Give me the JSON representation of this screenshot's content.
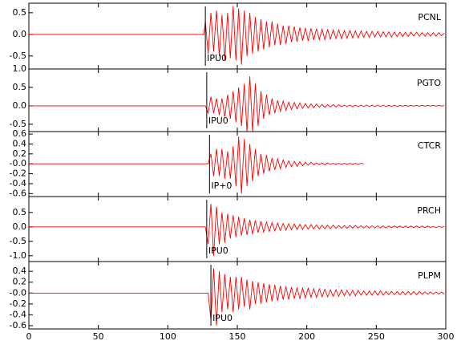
{
  "chart_data": [
    {
      "type": "line",
      "title": "PCNL",
      "x": [
        0,
        126,
        127,
        129,
        131,
        133,
        135,
        137,
        139,
        141,
        143,
        145,
        147,
        149,
        151,
        153,
        155,
        157,
        159,
        161,
        163,
        165,
        167,
        169,
        171,
        173,
        175,
        177,
        179,
        181,
        183,
        185,
        187,
        189,
        191,
        193,
        195,
        197,
        199,
        201,
        203,
        205,
        207,
        209,
        211,
        213,
        215,
        217,
        219,
        221,
        223,
        225,
        227,
        229,
        231,
        233,
        235,
        237,
        239,
        241,
        243,
        245,
        247,
        249,
        251,
        253,
        255,
        257,
        259,
        261,
        263,
        265,
        267,
        269,
        271,
        273,
        275,
        277,
        279,
        281,
        283,
        285,
        287,
        289,
        291,
        293,
        295,
        297,
        299
      ],
      "series": [
        {
          "color": "#ff0000",
          "values": [
            0,
            0,
            0.3,
            -0.45,
            0.5,
            -0.4,
            0.55,
            -0.5,
            0.45,
            -0.6,
            0.5,
            -0.55,
            0.65,
            -0.6,
            0.6,
            -0.7,
            0.55,
            -0.5,
            0.5,
            -0.45,
            0.4,
            -0.4,
            0.35,
            -0.35,
            0.3,
            -0.3,
            0.3,
            -0.25,
            0.25,
            -0.25,
            0.2,
            -0.22,
            0.2,
            -0.18,
            0.18,
            -0.17,
            0.16,
            -0.15,
            0.15,
            -0.15,
            0.14,
            -0.13,
            0.13,
            -0.12,
            0.12,
            -0.12,
            0.11,
            -0.11,
            0.1,
            -0.1,
            0.1,
            -0.1,
            0.09,
            -0.09,
            0.09,
            -0.08,
            0.08,
            -0.08,
            0.08,
            -0.07,
            0.07,
            -0.07,
            0.07,
            -0.06,
            0.07,
            -0.06,
            0.06,
            -0.06,
            0.06,
            -0.06,
            0.05,
            -0.05,
            0.05,
            -0.05,
            0.05,
            -0.05,
            0.05,
            -0.04,
            0.05,
            -0.04,
            0.04,
            -0.04,
            0.04,
            -0.04,
            0.04,
            -0.04,
            0.04,
            -0.03,
            0.03
          ]
        }
      ],
      "xlim": [
        0,
        300
      ],
      "xticks": [
        0,
        50,
        100,
        150,
        200,
        250,
        300
      ],
      "ylim": [
        -0.8,
        0.72
      ],
      "yticks": [
        -0.5,
        {
          "value": 0,
          "label": "0.0"
        },
        0.5
      ],
      "annotation": {
        "label": "IPU0",
        "x": 127
      }
    },
    {
      "type": "line",
      "title": "PGTO",
      "x": [
        0,
        126,
        127,
        129,
        131,
        133,
        135,
        137,
        139,
        141,
        143,
        145,
        147,
        149,
        151,
        153,
        155,
        157,
        159,
        161,
        163,
        165,
        167,
        169,
        171,
        173,
        175,
        177,
        179,
        181,
        183,
        185,
        187,
        189,
        191,
        193,
        195,
        197,
        199,
        201,
        203,
        205,
        207,
        209,
        211,
        213,
        215,
        217,
        219,
        221,
        223,
        225,
        227,
        229,
        231,
        233,
        235,
        237,
        239,
        241,
        243,
        245,
        247,
        249,
        251,
        253,
        255,
        257,
        259,
        261,
        263,
        265,
        267,
        269,
        271,
        273,
        275,
        277,
        279,
        281,
        283,
        285,
        287,
        289,
        291,
        293,
        295,
        297,
        299
      ],
      "series": [
        {
          "color": "#ff0000",
          "values": [
            0,
            0,
            0,
            -0.2,
            0.25,
            -0.2,
            0.2,
            -0.25,
            0.2,
            -0.3,
            0.3,
            -0.35,
            0.4,
            -0.45,
            0.5,
            -0.55,
            0.6,
            -0.7,
            0.8,
            -0.7,
            0.6,
            -0.55,
            0.4,
            -0.35,
            0.3,
            -0.25,
            0.2,
            -0.2,
            0.15,
            -0.15,
            0.13,
            -0.12,
            0.1,
            -0.1,
            0.09,
            -0.08,
            0.08,
            -0.07,
            0.06,
            -0.06,
            0.05,
            -0.05,
            0.05,
            -0.04,
            0.04,
            -0.04,
            0.03,
            -0.03,
            0.03,
            -0.03,
            0.03,
            -0.02,
            0.02,
            -0.02,
            0.02,
            -0.02,
            0.02,
            -0.02,
            0.02,
            -0.02,
            0.02,
            -0.02,
            0.02,
            -0.02,
            0.02,
            -0.02,
            0.02,
            -0.02,
            0.02,
            -0.02,
            0.02,
            -0.02,
            0.01,
            -0.01,
            0.01,
            -0.01,
            0.01,
            -0.01,
            0.01,
            -0.01,
            0.01,
            -0.01,
            0.01,
            -0.01,
            0.01,
            -0.01,
            0.01,
            -0.01,
            0.01
          ]
        }
      ],
      "xlim": [
        0,
        300
      ],
      "xticks": [
        0,
        50,
        100,
        150,
        200,
        250,
        300
      ],
      "ylim": [
        -0.7,
        1.0
      ],
      "yticks": [
        -0.5,
        {
          "value": 0,
          "label": "0.0"
        },
        0.5,
        {
          "value": 1,
          "label": "1.0"
        }
      ],
      "annotation": {
        "label": "IPU0",
        "x": 128
      }
    },
    {
      "type": "line",
      "title": "CTCR",
      "x": [
        0,
        126,
        127,
        129,
        131,
        133,
        135,
        137,
        139,
        141,
        143,
        145,
        147,
        149,
        151,
        153,
        155,
        157,
        159,
        161,
        163,
        165,
        167,
        169,
        171,
        173,
        175,
        177,
        179,
        181,
        183,
        185,
        187,
        189,
        191,
        193,
        195,
        197,
        199,
        201,
        203,
        205,
        207,
        209,
        211,
        213,
        215,
        217,
        219,
        221,
        223,
        225,
        227,
        229,
        231,
        233,
        235,
        237,
        239,
        241,
        243,
        245,
        247,
        249,
        251,
        253,
        255,
        257,
        259,
        261,
        263,
        265,
        267,
        269,
        271,
        273,
        275,
        277,
        279,
        281,
        283,
        285,
        287,
        289,
        291,
        293,
        295,
        297,
        299
      ],
      "series": [
        {
          "color": "#ff0000",
          "values": [
            0,
            0,
            0,
            0,
            0.2,
            -0.25,
            0.3,
            -0.25,
            0.3,
            -0.3,
            0.25,
            -0.3,
            0.35,
            -0.45,
            0.55,
            -0.6,
            0.5,
            -0.45,
            0.4,
            -0.35,
            0.3,
            -0.25,
            0.2,
            -0.2,
            0.18,
            -0.15,
            0.12,
            -0.12,
            0.1,
            -0.1,
            0.08,
            -0.07,
            0.06,
            -0.06,
            0.05,
            -0.05,
            0.04,
            -0.04,
            0.03,
            -0.03,
            0.03,
            -0.02,
            0.02,
            -0.02,
            0.02,
            -0.02,
            0.02,
            -0.01,
            0.01,
            -0.01,
            0.01,
            -0.01,
            0.01,
            -0.01,
            0.01,
            -0.01,
            0.01,
            -0.01,
            0.01,
            0,
            null,
            null,
            null,
            null,
            null,
            null,
            null,
            null,
            null,
            null,
            null,
            null,
            null,
            null,
            null,
            null,
            null,
            null,
            null,
            null,
            null,
            null,
            null,
            null,
            null,
            null,
            null,
            null,
            null
          ]
        }
      ],
      "xlim": [
        0,
        300
      ],
      "xticks": [
        0,
        50,
        100,
        150,
        200,
        250,
        300
      ],
      "ylim": [
        -0.66,
        0.65
      ],
      "yticks": [
        -0.6,
        -0.4,
        -0.2,
        {
          "value": 0,
          "label": "-0.0"
        },
        0.2,
        0.4,
        0.6
      ],
      "annotation": {
        "label": "IP+0",
        "x": 130
      }
    },
    {
      "type": "line",
      "title": "PRCH",
      "x": [
        0,
        126,
        127,
        129,
        131,
        133,
        135,
        137,
        139,
        141,
        143,
        145,
        147,
        149,
        151,
        153,
        155,
        157,
        159,
        161,
        163,
        165,
        167,
        169,
        171,
        173,
        175,
        177,
        179,
        181,
        183,
        185,
        187,
        189,
        191,
        193,
        195,
        197,
        199,
        201,
        203,
        205,
        207,
        209,
        211,
        213,
        215,
        217,
        219,
        221,
        223,
        225,
        227,
        229,
        231,
        233,
        235,
        237,
        239,
        241,
        243,
        245,
        247,
        249,
        251,
        253,
        255,
        257,
        259,
        261,
        263,
        265,
        267,
        269,
        271,
        273,
        275,
        277,
        279,
        281,
        283,
        285,
        287,
        289,
        291,
        293,
        295,
        297,
        299
      ],
      "series": [
        {
          "color": "#ff0000",
          "values": [
            0,
            0,
            0,
            -0.6,
            0.8,
            -1.0,
            0.7,
            -0.6,
            0.5,
            -0.55,
            0.45,
            -0.4,
            0.4,
            -0.35,
            0.35,
            -0.3,
            0.3,
            -0.28,
            0.25,
            -0.25,
            0.22,
            -0.2,
            0.2,
            -0.18,
            0.17,
            -0.16,
            0.15,
            -0.14,
            0.13,
            -0.13,
            0.12,
            -0.11,
            0.11,
            -0.1,
            0.1,
            -0.09,
            0.09,
            -0.09,
            0.08,
            -0.08,
            0.08,
            -0.07,
            0.07,
            -0.07,
            0.06,
            -0.06,
            0.06,
            -0.06,
            0.06,
            -0.05,
            0.05,
            -0.05,
            0.05,
            -0.05,
            0.05,
            -0.04,
            0.05,
            -0.04,
            0.04,
            -0.04,
            0.04,
            -0.04,
            0.04,
            -0.04,
            0.04,
            -0.04,
            0.03,
            -0.04,
            0.03,
            -0.03,
            0.03,
            -0.03,
            0.03,
            -0.03,
            0.03,
            -0.03,
            0.03,
            -0.03,
            0.03,
            -0.03,
            0.03,
            -0.03,
            0.03,
            -0.03,
            0.02,
            -0.03,
            0.02,
            -0.02,
            0.02
          ]
        }
      ],
      "xlim": [
        0,
        300
      ],
      "xticks": [
        0,
        50,
        100,
        150,
        200,
        250,
        300
      ],
      "ylim": [
        -1.2,
        1.05
      ],
      "yticks": [
        {
          "value": -1,
          "label": "-1.0"
        },
        -0.5,
        {
          "value": 0,
          "label": "0.0"
        },
        0.5
      ],
      "annotation": {
        "label": "IPU0",
        "x": 128
      }
    },
    {
      "type": "line",
      "title": "PLPM",
      "x": [
        0,
        126,
        127,
        129,
        131,
        133,
        135,
        137,
        139,
        141,
        143,
        145,
        147,
        149,
        151,
        153,
        155,
        157,
        159,
        161,
        163,
        165,
        167,
        169,
        171,
        173,
        175,
        177,
        179,
        181,
        183,
        185,
        187,
        189,
        191,
        193,
        195,
        197,
        199,
        201,
        203,
        205,
        207,
        209,
        211,
        213,
        215,
        217,
        219,
        221,
        223,
        225,
        227,
        229,
        231,
        233,
        235,
        237,
        239,
        241,
        243,
        245,
        247,
        249,
        251,
        253,
        255,
        257,
        259,
        261,
        263,
        265,
        267,
        269,
        271,
        273,
        275,
        277,
        279,
        281,
        283,
        285,
        287,
        289,
        291,
        293,
        295,
        297,
        299
      ],
      "series": [
        {
          "color": "#ff0000",
          "values": [
            0,
            0,
            0,
            0,
            -0.5,
            0.45,
            -0.6,
            0.4,
            -0.35,
            0.35,
            -0.3,
            0.3,
            -0.35,
            0.3,
            -0.3,
            0.3,
            -0.25,
            0.25,
            -0.3,
            0.22,
            -0.2,
            0.2,
            -0.2,
            0.18,
            -0.17,
            0.16,
            -0.15,
            0.15,
            -0.14,
            0.13,
            -0.12,
            0.12,
            -0.12,
            0.11,
            -0.1,
            0.1,
            -0.1,
            0.09,
            -0.09,
            0.09,
            -0.08,
            0.08,
            -0.08,
            0.08,
            -0.07,
            0.07,
            -0.07,
            0.06,
            -0.06,
            0.06,
            -0.06,
            0.06,
            -0.05,
            0.05,
            -0.05,
            0.05,
            -0.05,
            0.05,
            -0.04,
            0.04,
            -0.04,
            0.04,
            -0.04,
            0.04,
            -0.04,
            0.04,
            -0.04,
            0.03,
            -0.03,
            0.03,
            -0.03,
            0.03,
            -0.03,
            0.03,
            -0.03,
            0.03,
            -0.03,
            0.03,
            -0.03,
            0.03,
            -0.02,
            0.02,
            -0.02,
            0.02,
            -0.02,
            0.02,
            -0.02,
            0.02,
            -0.02
          ]
        }
      ],
      "xlim": [
        0,
        300
      ],
      "xticks": [
        0,
        50,
        100,
        150,
        200,
        250,
        300
      ],
      "ylim": [
        -0.66,
        0.58
      ],
      "yticks": [
        -0.6,
        -0.4,
        -0.2,
        {
          "value": 0,
          "label": "-0.0"
        },
        0.2,
        0.4
      ],
      "annotation": {
        "label": "IPU0",
        "x": 131
      }
    }
  ]
}
